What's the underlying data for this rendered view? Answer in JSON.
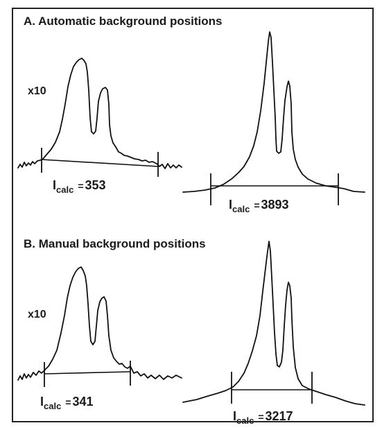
{
  "panel_a": {
    "title": "A. Automatic background positions",
    "left_peak": {
      "scale": "x10",
      "calc_symbol": "I",
      "calc_subscript": "calc",
      "calc_equals": "=",
      "calc_value": "353"
    },
    "right_peak": {
      "calc_symbol": "I",
      "calc_subscript": "calc",
      "calc_equals": "=",
      "calc_value": "3893"
    }
  },
  "panel_b": {
    "title": "B. Manual background positions",
    "left_peak": {
      "scale": "x10",
      "calc_symbol": "I",
      "calc_subscript": "calc",
      "calc_equals": "=",
      "calc_value": "341"
    },
    "right_peak": {
      "calc_symbol": "I",
      "calc_subscript": "calc",
      "calc_equals": "=",
      "calc_value": "3217"
    }
  }
}
